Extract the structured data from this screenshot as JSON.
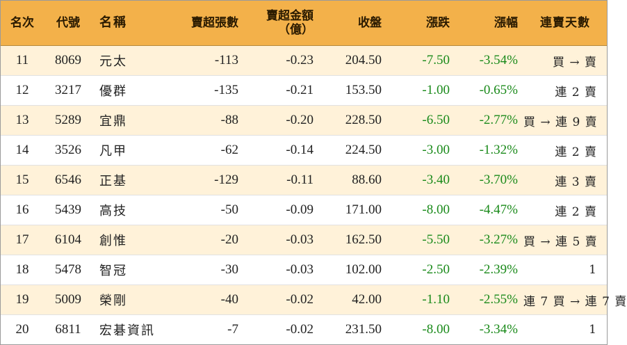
{
  "headers": {
    "rank": "名次",
    "code": "代號",
    "name": "名稱",
    "net_sell_lots": "賣超張數",
    "net_sell_amount_line1": "賣超金額",
    "net_sell_amount_line2": "（億）",
    "close": "收盤",
    "change": "漲跌",
    "change_pct": "漲幅",
    "streak": "連賣天數"
  },
  "colors": {
    "header_bg": "#f3b14a",
    "odd_row_bg": "#fff2d9",
    "change_text": "#1a8a1a"
  },
  "rows": [
    {
      "rank": "11",
      "code": "8069",
      "name": "元太",
      "lots": "-113",
      "amount": "-0.23",
      "close": "204.50",
      "change": "-7.50",
      "pct": "-3.54%",
      "streak": "買 → 賣"
    },
    {
      "rank": "12",
      "code": "3217",
      "name": "優群",
      "lots": "-135",
      "amount": "-0.21",
      "close": "153.50",
      "change": "-1.00",
      "pct": "-0.65%",
      "streak": "連 2 賣"
    },
    {
      "rank": "13",
      "code": "5289",
      "name": "宜鼎",
      "lots": "-88",
      "amount": "-0.20",
      "close": "228.50",
      "change": "-6.50",
      "pct": "-2.77%",
      "streak": "買 → 連 9 賣"
    },
    {
      "rank": "14",
      "code": "3526",
      "name": "凡甲",
      "lots": "-62",
      "amount": "-0.14",
      "close": "224.50",
      "change": "-3.00",
      "pct": "-1.32%",
      "streak": "連 2 賣"
    },
    {
      "rank": "15",
      "code": "6546",
      "name": "正基",
      "lots": "-129",
      "amount": "-0.11",
      "close": "88.60",
      "change": "-3.40",
      "pct": "-3.70%",
      "streak": "連 3 賣"
    },
    {
      "rank": "16",
      "code": "5439",
      "name": "高技",
      "lots": "-50",
      "amount": "-0.09",
      "close": "171.00",
      "change": "-8.00",
      "pct": "-4.47%",
      "streak": "連 2 賣"
    },
    {
      "rank": "17",
      "code": "6104",
      "name": "創惟",
      "lots": "-20",
      "amount": "-0.03",
      "close": "162.50",
      "change": "-5.50",
      "pct": "-3.27%",
      "streak": "買 → 連 5 賣"
    },
    {
      "rank": "18",
      "code": "5478",
      "name": "智冠",
      "lots": "-30",
      "amount": "-0.03",
      "close": "102.00",
      "change": "-2.50",
      "pct": "-2.39%",
      "streak": "1"
    },
    {
      "rank": "19",
      "code": "5009",
      "name": "榮剛",
      "lots": "-40",
      "amount": "-0.02",
      "close": "42.00",
      "change": "-1.10",
      "pct": "-2.55%",
      "streak": "連 7 買 → 連 7 賣"
    },
    {
      "rank": "20",
      "code": "6811",
      "name": "宏碁資訊",
      "lots": "-7",
      "amount": "-0.02",
      "close": "231.50",
      "change": "-8.00",
      "pct": "-3.34%",
      "streak": "1"
    }
  ]
}
